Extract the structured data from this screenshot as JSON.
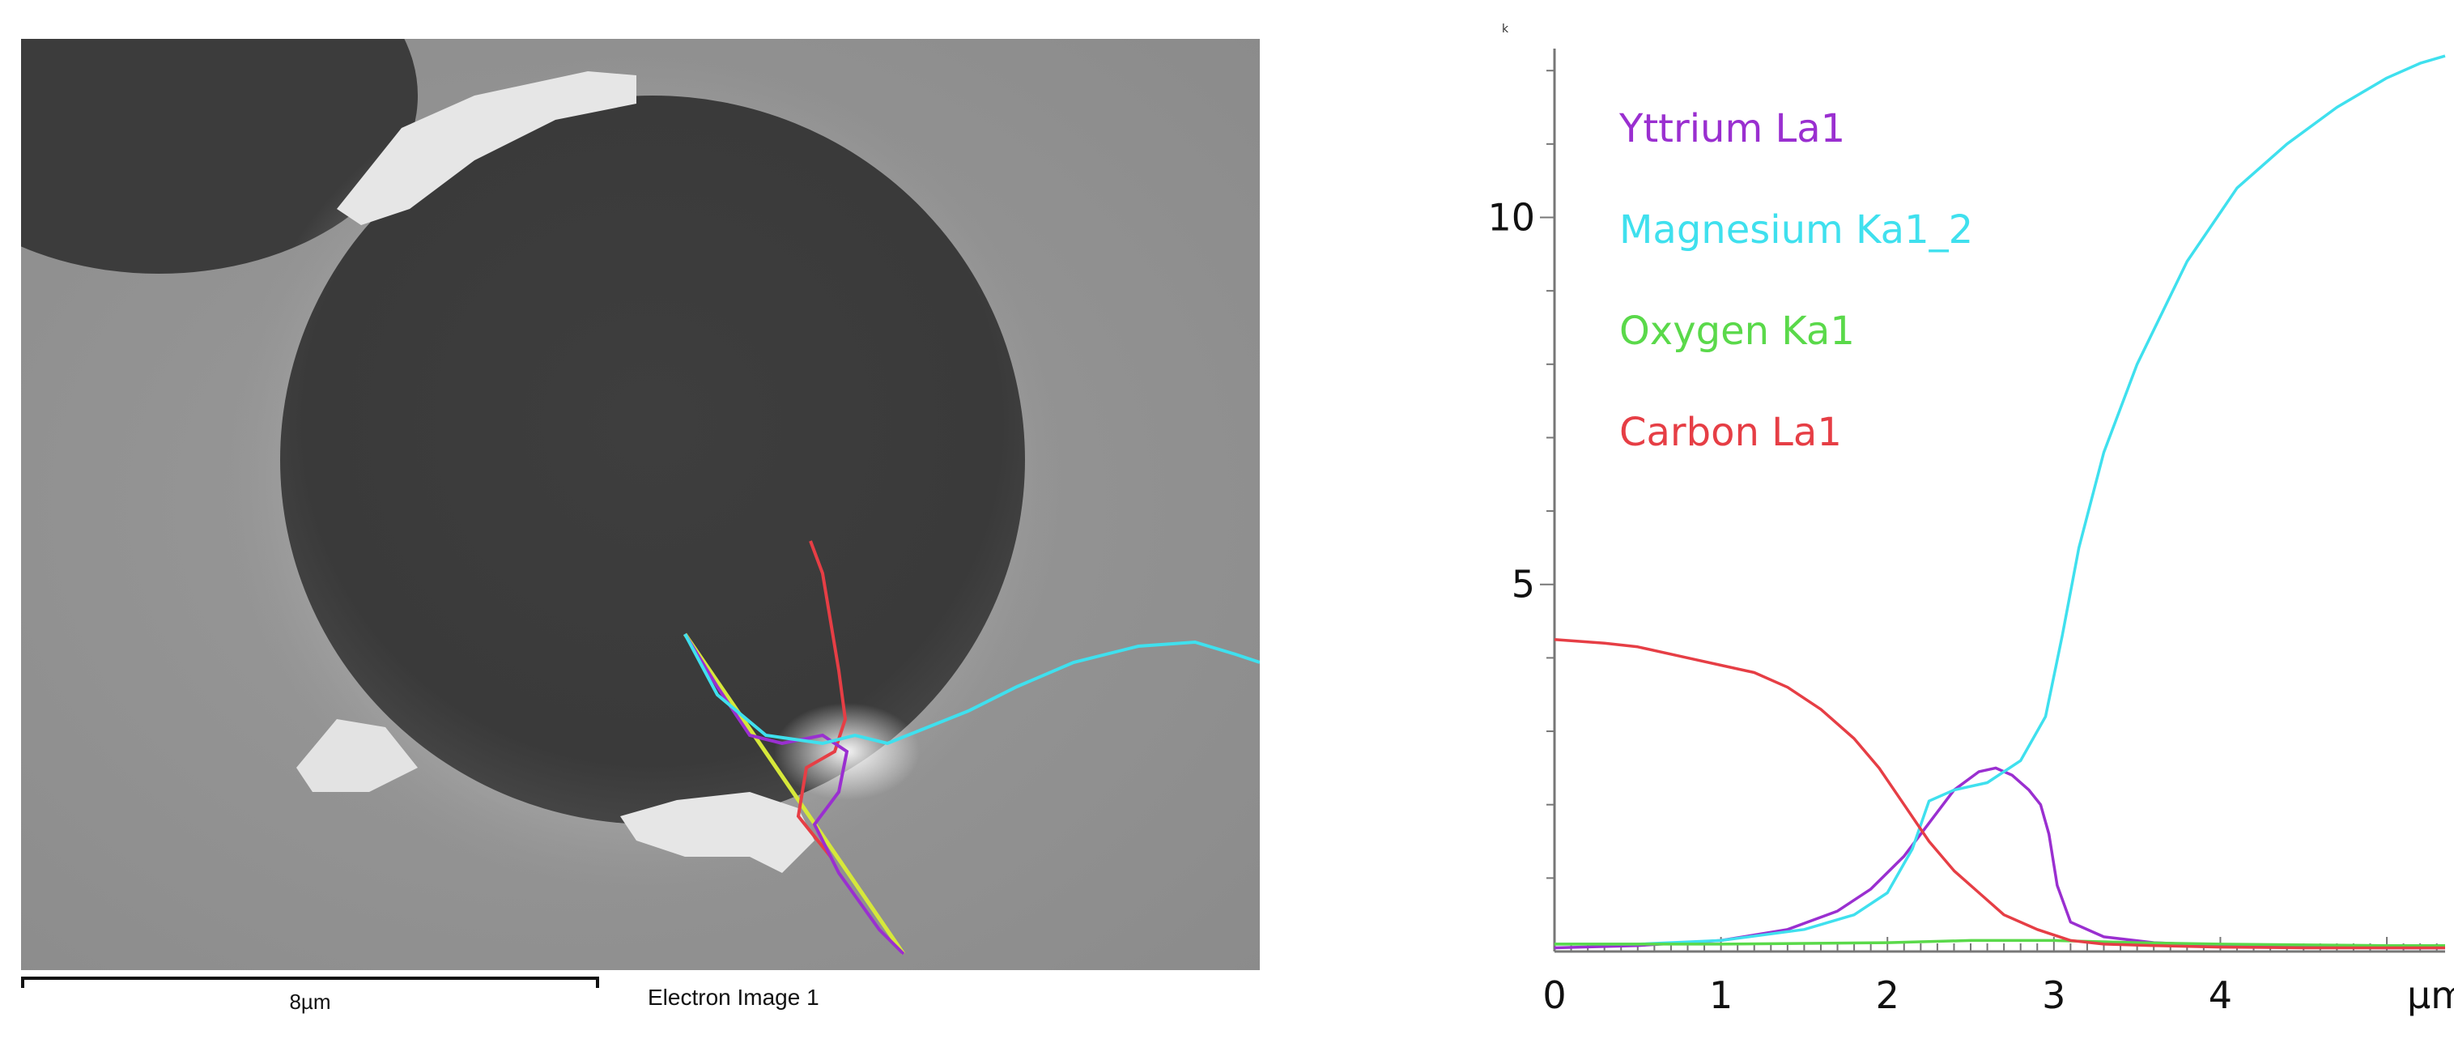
{
  "colors": {
    "yttrium": "#9a2fd0",
    "magnesium": "#3fe0ee",
    "oxygen": "#5ad94a",
    "carbon": "#e63e45"
  },
  "sem_image": {
    "scale_bar_label": "8µm",
    "caption": "Electron Image 1"
  },
  "chart_data": {
    "type": "line",
    "title": "",
    "corner_mark": "k",
    "xlabel": "µm",
    "ylabel": "",
    "xlim": [
      0,
      5.35
    ],
    "ylim": [
      0,
      12.3
    ],
    "x_ticks": [
      0,
      1,
      2,
      3,
      4
    ],
    "y_ticks": [
      5,
      10
    ],
    "legend_position": "top-left",
    "series": [
      {
        "name": "Yttrium La1",
        "color_key": "yttrium",
        "x": [
          0,
          0.5,
          1.0,
          1.4,
          1.7,
          1.9,
          2.1,
          2.25,
          2.4,
          2.55,
          2.65,
          2.75,
          2.85,
          2.92,
          2.97,
          3.02,
          3.1,
          3.3,
          3.6,
          4.0,
          4.5,
          5.0,
          5.35
        ],
        "values": [
          0.05,
          0.08,
          0.15,
          0.3,
          0.55,
          0.85,
          1.3,
          1.75,
          2.2,
          2.45,
          2.5,
          2.4,
          2.2,
          2.0,
          1.6,
          0.9,
          0.4,
          0.2,
          0.12,
          0.08,
          0.06,
          0.05,
          0.05
        ]
      },
      {
        "name": "Magnesium Ka1_2",
        "color_key": "magnesium",
        "x": [
          0,
          0.5,
          1.0,
          1.5,
          1.8,
          2.0,
          2.15,
          2.25,
          2.4,
          2.6,
          2.8,
          2.95,
          3.05,
          3.15,
          3.3,
          3.5,
          3.8,
          4.1,
          4.4,
          4.7,
          5.0,
          5.2,
          5.35
        ],
        "values": [
          0.1,
          0.1,
          0.15,
          0.3,
          0.5,
          0.8,
          1.4,
          2.05,
          2.2,
          2.3,
          2.6,
          3.2,
          4.3,
          5.5,
          6.8,
          8.0,
          9.4,
          10.4,
          11.0,
          11.5,
          11.9,
          12.1,
          12.2
        ]
      },
      {
        "name": "Oxygen Ka1",
        "color_key": "oxygen",
        "x": [
          0,
          1,
          2,
          2.5,
          3,
          3.5,
          4,
          5,
          5.35
        ],
        "values": [
          0.1,
          0.1,
          0.12,
          0.15,
          0.15,
          0.12,
          0.1,
          0.08,
          0.08
        ]
      },
      {
        "name": "Carbon La1",
        "color_key": "carbon",
        "x": [
          0,
          0.3,
          0.5,
          0.8,
          1.0,
          1.2,
          1.4,
          1.6,
          1.8,
          1.95,
          2.1,
          2.25,
          2.4,
          2.55,
          2.7,
          2.9,
          3.1,
          3.3,
          3.6,
          4.0,
          4.5,
          5.0,
          5.35
        ],
        "values": [
          4.25,
          4.2,
          4.15,
          4.0,
          3.9,
          3.8,
          3.6,
          3.3,
          2.9,
          2.5,
          2.0,
          1.5,
          1.1,
          0.8,
          0.5,
          0.3,
          0.15,
          0.1,
          0.08,
          0.06,
          0.05,
          0.05,
          0.05
        ]
      }
    ]
  }
}
